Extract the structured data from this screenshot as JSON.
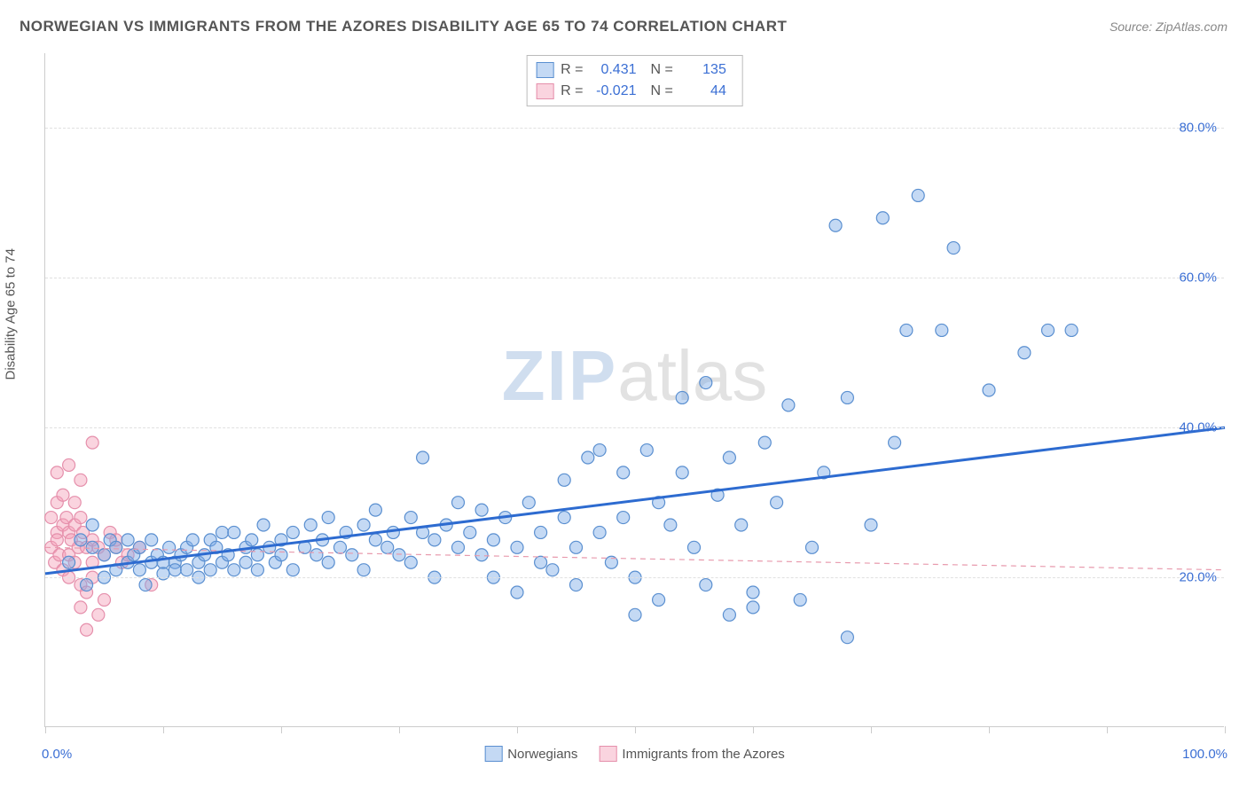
{
  "header": {
    "title": "NORWEGIAN VS IMMIGRANTS FROM THE AZORES DISABILITY AGE 65 TO 74 CORRELATION CHART",
    "source": "Source: ZipAtlas.com"
  },
  "chart": {
    "type": "scatter",
    "y_label": "Disability Age 65 to 74",
    "xlim": [
      0,
      100
    ],
    "ylim": [
      0,
      90
    ],
    "y_ticks": [
      20,
      40,
      60,
      80
    ],
    "y_tick_labels": [
      "20.0%",
      "40.0%",
      "60.0%",
      "80.0%"
    ],
    "x_ticks": [
      0,
      10,
      20,
      30,
      40,
      50,
      60,
      70,
      80,
      90,
      100
    ],
    "x_axis_left_label": "0.0%",
    "x_axis_right_label": "100.0%",
    "background_color": "#ffffff",
    "grid_color": "#e0e0e0",
    "marker_radius": 7,
    "marker_stroke_width": 1.2,
    "trend_line_width_main": 3,
    "trend_line_width_sec": 1.2,
    "watermark": {
      "part1": "ZIP",
      "part2": "atlas"
    }
  },
  "series": [
    {
      "name": "Norwegians",
      "label": "Norwegians",
      "color_fill": "rgba(125, 170, 230, 0.45)",
      "color_stroke": "#5a8fd0",
      "trend_color": "#2d6bd0",
      "trend_style": "solid",
      "trend": {
        "x1": 0,
        "y1": 20.5,
        "x2": 100,
        "y2": 40.0
      },
      "r_label": "R =",
      "r_value": "0.431",
      "n_label": "N =",
      "n_value": "135",
      "points": [
        [
          2,
          22
        ],
        [
          3,
          25
        ],
        [
          3.5,
          19
        ],
        [
          4,
          24
        ],
        [
          4,
          27
        ],
        [
          5,
          23
        ],
        [
          5,
          20
        ],
        [
          5.5,
          25
        ],
        [
          6,
          24
        ],
        [
          6,
          21
        ],
        [
          7,
          25
        ],
        [
          7,
          22
        ],
        [
          7.5,
          23
        ],
        [
          8,
          24
        ],
        [
          8,
          21
        ],
        [
          8.5,
          19
        ],
        [
          9,
          22
        ],
        [
          9,
          25
        ],
        [
          9.5,
          23
        ],
        [
          10,
          22
        ],
        [
          10,
          20.5
        ],
        [
          10.5,
          24
        ],
        [
          11,
          22
        ],
        [
          11,
          21
        ],
        [
          11.5,
          23
        ],
        [
          12,
          21
        ],
        [
          12,
          24
        ],
        [
          12.5,
          25
        ],
        [
          13,
          22
        ],
        [
          13,
          20
        ],
        [
          13.5,
          23
        ],
        [
          14,
          25
        ],
        [
          14,
          21
        ],
        [
          14.5,
          24
        ],
        [
          15,
          22
        ],
        [
          15,
          26
        ],
        [
          15.5,
          23
        ],
        [
          16,
          21
        ],
        [
          16,
          26
        ],
        [
          17,
          24
        ],
        [
          17,
          22
        ],
        [
          17.5,
          25
        ],
        [
          18,
          23
        ],
        [
          18,
          21
        ],
        [
          18.5,
          27
        ],
        [
          19,
          24
        ],
        [
          19.5,
          22
        ],
        [
          20,
          25
        ],
        [
          20,
          23
        ],
        [
          21,
          26
        ],
        [
          21,
          21
        ],
        [
          22,
          24
        ],
        [
          22.5,
          27
        ],
        [
          23,
          23
        ],
        [
          23.5,
          25
        ],
        [
          24,
          22
        ],
        [
          24,
          28
        ],
        [
          25,
          24
        ],
        [
          25.5,
          26
        ],
        [
          26,
          23
        ],
        [
          27,
          27
        ],
        [
          27,
          21
        ],
        [
          28,
          25
        ],
        [
          28,
          29
        ],
        [
          29,
          24
        ],
        [
          29.5,
          26
        ],
        [
          30,
          23
        ],
        [
          31,
          28
        ],
        [
          31,
          22
        ],
        [
          32,
          26
        ],
        [
          32,
          36
        ],
        [
          33,
          25
        ],
        [
          33,
          20
        ],
        [
          34,
          27
        ],
        [
          35,
          24
        ],
        [
          35,
          30
        ],
        [
          36,
          26
        ],
        [
          37,
          23
        ],
        [
          37,
          29
        ],
        [
          38,
          25
        ],
        [
          38,
          20
        ],
        [
          39,
          28
        ],
        [
          40,
          24
        ],
        [
          40,
          18
        ],
        [
          41,
          30
        ],
        [
          42,
          26
        ],
        [
          42,
          22
        ],
        [
          43,
          21
        ],
        [
          44,
          33
        ],
        [
          44,
          28
        ],
        [
          45,
          24
        ],
        [
          45,
          19
        ],
        [
          46,
          36
        ],
        [
          47,
          37
        ],
        [
          47,
          26
        ],
        [
          48,
          22
        ],
        [
          49,
          28
        ],
        [
          49,
          34
        ],
        [
          50,
          20
        ],
        [
          50,
          15
        ],
        [
          51,
          37
        ],
        [
          52,
          30
        ],
        [
          52,
          17
        ],
        [
          53,
          27
        ],
        [
          54,
          34
        ],
        [
          54,
          44
        ],
        [
          55,
          24
        ],
        [
          56,
          19
        ],
        [
          56,
          46
        ],
        [
          57,
          31
        ],
        [
          58,
          36
        ],
        [
          58,
          15
        ],
        [
          59,
          27
        ],
        [
          60,
          18
        ],
        [
          60,
          16
        ],
        [
          61,
          38
        ],
        [
          62,
          30
        ],
        [
          63,
          43
        ],
        [
          64,
          17
        ],
        [
          65,
          24
        ],
        [
          66,
          34
        ],
        [
          67,
          67
        ],
        [
          68,
          44
        ],
        [
          68,
          12
        ],
        [
          70,
          27
        ],
        [
          71,
          68
        ],
        [
          72,
          38
        ],
        [
          73,
          53
        ],
        [
          74,
          71
        ],
        [
          76,
          53
        ],
        [
          77,
          64
        ],
        [
          80,
          45
        ],
        [
          83,
          50
        ],
        [
          85,
          53
        ],
        [
          87,
          53
        ]
      ]
    },
    {
      "name": "Immigrants from the Azores",
      "label": "Immigrants from the Azores",
      "color_fill": "rgba(245, 160, 185, 0.45)",
      "color_stroke": "#e58fab",
      "trend_color": "#e89aad",
      "trend_style": "dashed",
      "trend": {
        "x1": 0,
        "y1": 24.0,
        "x2": 100,
        "y2": 21.0
      },
      "r_label": "R =",
      "r_value": "-0.021",
      "n_label": "N =",
      "n_value": "44",
      "points": [
        [
          0.5,
          24
        ],
        [
          0.5,
          28
        ],
        [
          0.8,
          22
        ],
        [
          1,
          26
        ],
        [
          1,
          30
        ],
        [
          1,
          25
        ],
        [
          1,
          34
        ],
        [
          1.2,
          23
        ],
        [
          1.5,
          27
        ],
        [
          1.5,
          21
        ],
        [
          1.5,
          31
        ],
        [
          1.8,
          28
        ],
        [
          2,
          26
        ],
        [
          2,
          23
        ],
        [
          2,
          35
        ],
        [
          2,
          20
        ],
        [
          2.2,
          25
        ],
        [
          2.5,
          27
        ],
        [
          2.5,
          22
        ],
        [
          2.5,
          30
        ],
        [
          2.8,
          24
        ],
        [
          3,
          28
        ],
        [
          3,
          19
        ],
        [
          3,
          33
        ],
        [
          3,
          16
        ],
        [
          3.2,
          26
        ],
        [
          3.5,
          24
        ],
        [
          3.5,
          18
        ],
        [
          3.5,
          13
        ],
        [
          4,
          25
        ],
        [
          4,
          22
        ],
        [
          4,
          20
        ],
        [
          4,
          38
        ],
        [
          4.5,
          15
        ],
        [
          4.5,
          24
        ],
        [
          5,
          23
        ],
        [
          5,
          17
        ],
        [
          5.5,
          26
        ],
        [
          6,
          24
        ],
        [
          6,
          25
        ],
        [
          6.5,
          22
        ],
        [
          7,
          23
        ],
        [
          8,
          24
        ],
        [
          9,
          19
        ]
      ]
    }
  ],
  "bottom_legend": [
    {
      "label": "Norwegians",
      "swatch_fill": "rgba(125,170,230,0.45)",
      "swatch_stroke": "#5a8fd0"
    },
    {
      "label": "Immigrants from the Azores",
      "swatch_fill": "rgba(245,160,185,0.45)",
      "swatch_stroke": "#e58fab"
    }
  ]
}
